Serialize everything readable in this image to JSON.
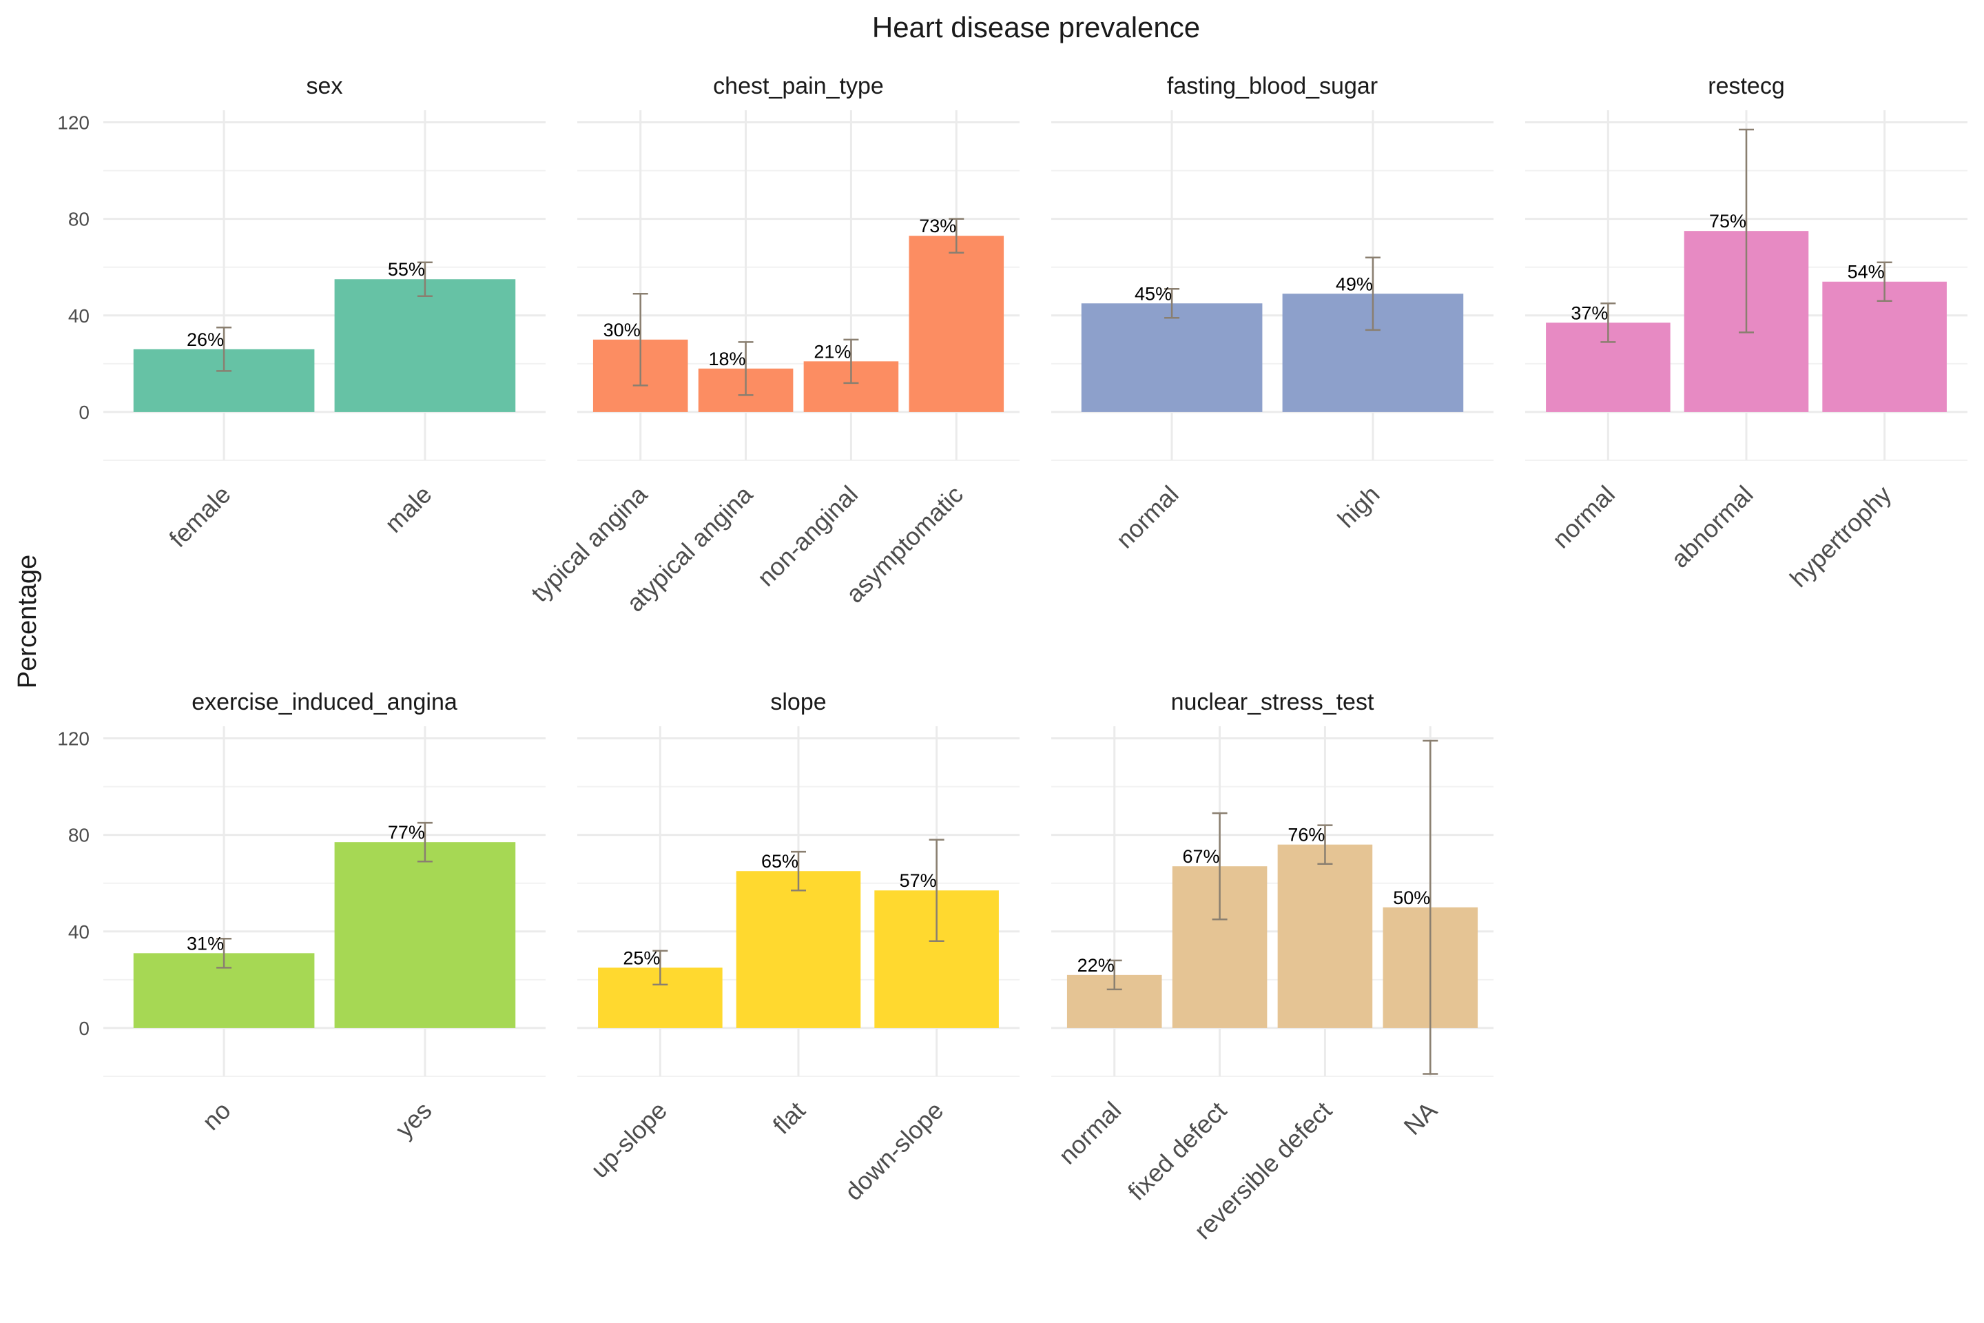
{
  "chart_data": {
    "type": "bar",
    "title": "Heart disease prevalence",
    "ylabel": "Percentage",
    "xlabel": "",
    "ylim": [
      -20,
      125
    ],
    "yticks": [
      0,
      40,
      80,
      120
    ],
    "grid": true,
    "legend": "none",
    "panels": [
      {
        "name": "sex",
        "color": "#66c2a5",
        "categories": [
          "female",
          "male"
        ],
        "values": [
          26,
          55
        ],
        "labels": [
          "26%",
          "55%"
        ],
        "err_low": [
          17,
          48
        ],
        "err_high": [
          35,
          62
        ]
      },
      {
        "name": "chest_pain_type",
        "color": "#fc8d62",
        "categories": [
          "typical angina",
          "atypical angina",
          "non-anginal",
          "asymptomatic"
        ],
        "values": [
          30,
          18,
          21,
          73
        ],
        "labels": [
          "30%",
          "18%",
          "21%",
          "73%"
        ],
        "err_low": [
          11,
          7,
          12,
          66
        ],
        "err_high": [
          49,
          29,
          30,
          80
        ]
      },
      {
        "name": "fasting_blood_sugar",
        "color": "#8da0cb",
        "categories": [
          "normal",
          "high"
        ],
        "values": [
          45,
          49
        ],
        "labels": [
          "45%",
          "49%"
        ],
        "err_low": [
          39,
          34
        ],
        "err_high": [
          51,
          64
        ]
      },
      {
        "name": "restecg",
        "color": "#e78ac3",
        "categories": [
          "normal",
          "abnormal",
          "hypertrophy"
        ],
        "values": [
          37,
          75,
          54
        ],
        "labels": [
          "37%",
          "75%",
          "54%"
        ],
        "err_low": [
          29,
          33,
          46
        ],
        "err_high": [
          45,
          117,
          62
        ]
      },
      {
        "name": "exercise_induced_angina",
        "color": "#a6d854",
        "categories": [
          "no",
          "yes"
        ],
        "values": [
          31,
          77
        ],
        "labels": [
          "31%",
          "77%"
        ],
        "err_low": [
          25,
          69
        ],
        "err_high": [
          37,
          85
        ]
      },
      {
        "name": "slope",
        "color": "#ffd92f",
        "categories": [
          "up-slope",
          "flat",
          "down-slope"
        ],
        "values": [
          25,
          65,
          57
        ],
        "labels": [
          "25%",
          "65%",
          "57%"
        ],
        "err_low": [
          18,
          57,
          36
        ],
        "err_high": [
          32,
          73,
          78
        ]
      },
      {
        "name": "nuclear_stress_test",
        "color": "#e5c494",
        "categories": [
          "normal",
          "fixed defect",
          "reversible defect",
          "NA"
        ],
        "values": [
          22,
          67,
          76,
          50
        ],
        "labels": [
          "22%",
          "67%",
          "76%",
          "50%"
        ],
        "err_low": [
          16,
          45,
          68,
          -19
        ],
        "err_high": [
          28,
          89,
          84,
          119
        ]
      }
    ]
  }
}
